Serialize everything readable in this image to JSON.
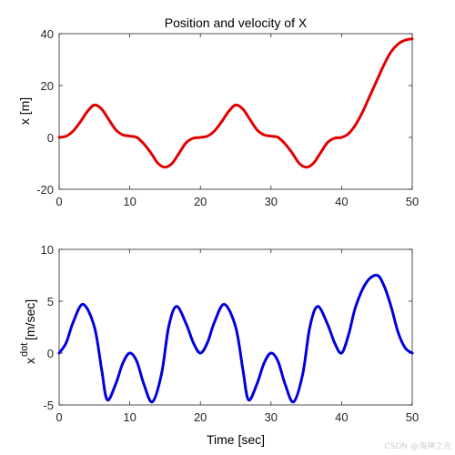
{
  "figure": {
    "watermark": "CSDN @海神之光"
  },
  "chart_data": [
    {
      "type": "line",
      "title": "Position and velocity of X",
      "xlabel": "",
      "ylabel": "x [m]",
      "xlim": [
        0,
        50
      ],
      "ylim": [
        -20,
        40
      ],
      "xticks": [
        "0",
        "10",
        "20",
        "30",
        "40",
        "50"
      ],
      "yticks": [
        "-20",
        "0",
        "20",
        "40"
      ],
      "grid": false,
      "series": [
        {
          "color": "#e00000",
          "x": [
            0,
            1,
            2,
            3,
            4,
            5,
            6,
            7,
            8,
            9,
            10,
            11,
            12,
            13,
            14,
            15,
            16,
            17,
            18,
            19,
            20,
            21,
            22,
            23,
            24,
            25,
            26,
            27,
            28,
            29,
            30,
            31,
            32,
            33,
            34,
            35,
            36,
            37,
            38,
            39,
            40,
            41,
            42,
            43,
            44,
            45,
            46,
            47,
            48,
            49,
            50
          ],
          "y": [
            0,
            0.5,
            2.5,
            6,
            10,
            12.5,
            11,
            7,
            3,
            1,
            0.5,
            0,
            -2.5,
            -6,
            -10,
            -11.5,
            -10,
            -6,
            -2,
            -0.3,
            0,
            0.5,
            2.5,
            6,
            10,
            12.5,
            11,
            7,
            3,
            1,
            0.5,
            0,
            -2.5,
            -6,
            -10,
            -11.5,
            -10,
            -6,
            -2,
            -0.3,
            0,
            1.5,
            5,
            10,
            16,
            22,
            28,
            33,
            36,
            37.5,
            38
          ]
        }
      ]
    },
    {
      "type": "line",
      "title": "",
      "xlabel": "Time [sec]",
      "ylabel_base": "x",
      "ylabel_sup": "dot",
      "ylabel_rest": " [m/sec]",
      "xlim": [
        0,
        50
      ],
      "ylim": [
        -5,
        10
      ],
      "xticks": [
        "0",
        "10",
        "20",
        "30",
        "40",
        "50"
      ],
      "yticks": [
        "-5",
        "0",
        "5",
        "10"
      ],
      "grid": false,
      "series": [
        {
          "color": "#0000dd",
          "x": [
            0,
            1,
            2,
            3.4,
            5,
            6,
            6.8,
            8,
            9,
            10,
            11,
            12,
            13.2,
            14.5,
            15.5,
            16.6,
            18,
            19,
            20,
            21,
            22,
            23.4,
            25,
            26,
            26.8,
            28,
            29,
            30,
            31,
            32,
            33.2,
            34.5,
            35.5,
            36.6,
            38,
            39,
            40,
            41,
            42,
            43.5,
            45,
            46,
            47,
            48,
            49,
            50
          ],
          "y": [
            0,
            1,
            3,
            4.7,
            2.5,
            -1.5,
            -4.5,
            -3,
            -1,
            0,
            -0.8,
            -3,
            -4.7,
            -2,
            2.5,
            4.5,
            2.8,
            1,
            0,
            1,
            3,
            4.7,
            2.5,
            -1.5,
            -4.5,
            -3,
            -1,
            0,
            -0.8,
            -3,
            -4.7,
            -2,
            2.5,
            4.5,
            2.8,
            1,
            0,
            1.8,
            4.5,
            6.8,
            7.5,
            6.5,
            4.5,
            2,
            0.5,
            0
          ]
        }
      ]
    }
  ]
}
